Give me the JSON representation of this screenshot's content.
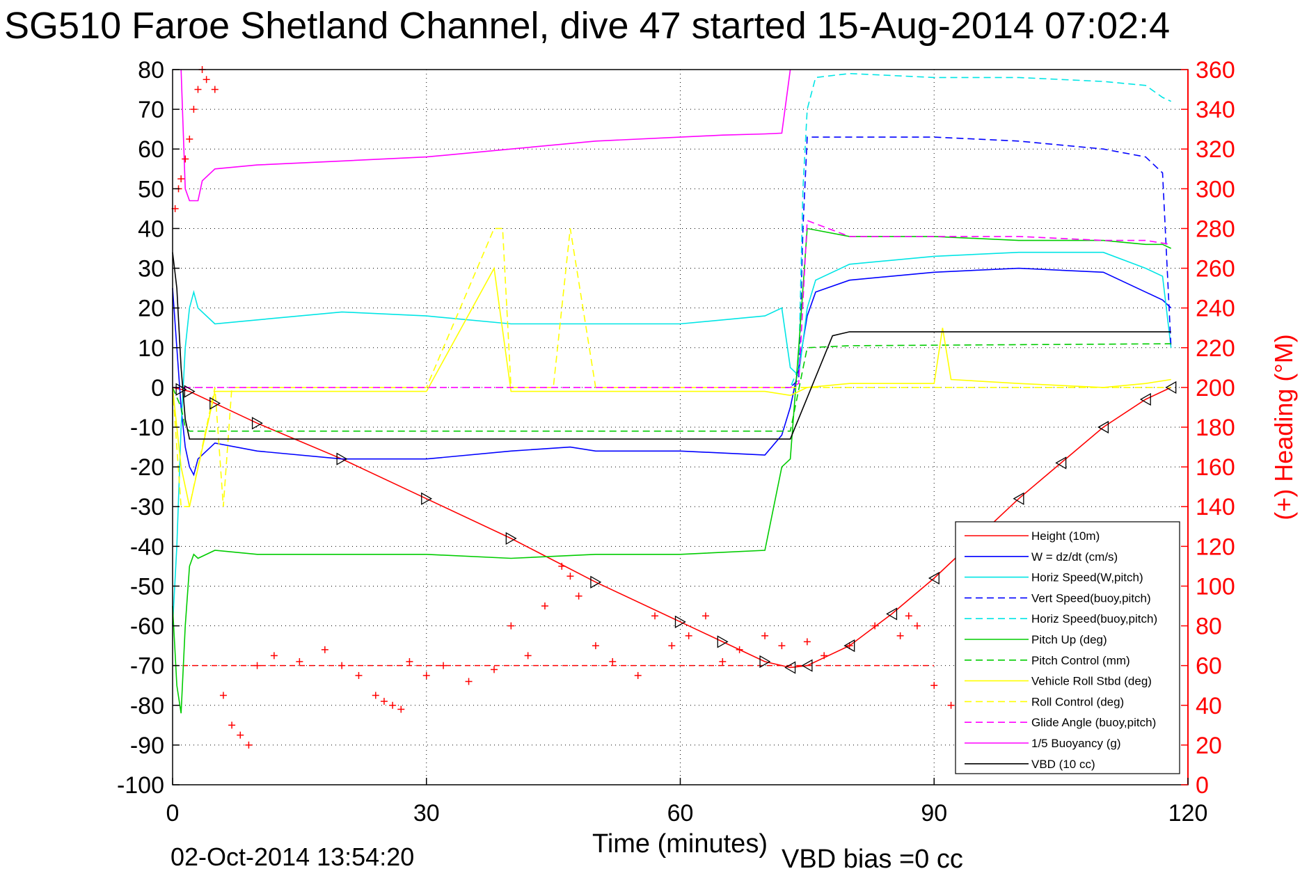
{
  "title": "SG510 Faroe Shetland Channel, dive 47 started 15-Aug-2014 07:02:4",
  "footer": {
    "timestamp": "02-Oct-2014 13:54:20",
    "vbd_bias": "VBD bias =0 cc"
  },
  "colors": {
    "axis_right": "#ff0000",
    "grid": "#000000",
    "height": "#ff0000",
    "w": "#0000ff",
    "horiz_w": "#00e5e5",
    "vert_buoy": "#0000ff",
    "horiz_buoy": "#00e5e5",
    "pitch": "#00cc00",
    "pitch_ctrl": "#00cc00",
    "roll": "#ffff00",
    "roll_ctrl": "#ffff00",
    "glide": "#ff00ff",
    "buoyancy": "#ff00ff",
    "vbd": "#000000",
    "heading": "#ff0000"
  },
  "chart_data": {
    "type": "line",
    "title": "SG510 Faroe Shetland Channel, dive 47 started 15-Aug-2014 07:02:4",
    "xlabel": "Time (minutes)",
    "ylabel": "",
    "y2label": "(+) Heading (°M)",
    "xlim": [
      0,
      120
    ],
    "ylim": [
      -100,
      80
    ],
    "y2lim": [
      0,
      360
    ],
    "xticks": [
      "0",
      "30",
      "60",
      "90",
      "120"
    ],
    "yticks": [
      "80",
      "70",
      "60",
      "50",
      "40",
      "30",
      "20",
      "10",
      "0",
      "-10",
      "-20",
      "-30",
      "-40",
      "-50",
      "-60",
      "-70",
      "-80",
      "-90",
      "-100"
    ],
    "y2ticks": [
      "360",
      "340",
      "320",
      "300",
      "280",
      "260",
      "240",
      "220",
      "200",
      "180",
      "160",
      "140",
      "120",
      "100",
      "80",
      "60",
      "40",
      "20",
      "0"
    ],
    "grid": true,
    "legend_position": "bottom-right",
    "series": [
      {
        "name": "Height (10m)",
        "style": "solid",
        "color": "#ff0000",
        "x": [
          0,
          1,
          2,
          5,
          10,
          20,
          30,
          40,
          50,
          60,
          65,
          70,
          73,
          75,
          80,
          85,
          90,
          95,
          100,
          105,
          110,
          115,
          118
        ],
        "y": [
          0,
          -0.5,
          -1,
          -4,
          -9,
          -18,
          -28,
          -38,
          -49,
          -59,
          -64,
          -69,
          -70.5,
          -70,
          -65,
          -57,
          -48,
          -38,
          -28,
          -19,
          -10,
          -3,
          0
        ]
      },
      {
        "name": "W = dz/dt (cm/s)",
        "style": "solid",
        "color": "#0000ff",
        "x": [
          0,
          0.5,
          1,
          1.5,
          2,
          2.5,
          3,
          5,
          10,
          20,
          30,
          40,
          47,
          50,
          60,
          70,
          72,
          73,
          74,
          75,
          76,
          80,
          90,
          100,
          110,
          115,
          117,
          118
        ],
        "y": [
          25,
          10,
          -5,
          -15,
          -20,
          -22,
          -18,
          -14,
          -16,
          -18,
          -18,
          -16,
          -15,
          -16,
          -16,
          -17,
          -12,
          -5,
          5,
          18,
          24,
          27,
          29,
          30,
          29,
          24,
          22,
          20
        ]
      },
      {
        "name": "Horiz Speed(W,pitch)",
        "style": "solid",
        "color": "#00e5e5",
        "x": [
          0,
          0.5,
          1,
          1.5,
          2,
          2.5,
          3,
          5,
          10,
          20,
          30,
          40,
          47,
          50,
          60,
          70,
          72,
          73,
          74,
          75,
          76,
          80,
          90,
          100,
          110,
          115,
          117,
          118
        ],
        "y": [
          -60,
          -40,
          -10,
          10,
          20,
          24,
          20,
          16,
          17,
          19,
          18,
          16,
          16,
          16,
          16,
          18,
          20,
          5,
          3,
          20,
          27,
          31,
          33,
          34,
          34,
          30,
          28,
          10
        ]
      },
      {
        "name": "Vert Speed(buoy,pitch)",
        "style": "dashed",
        "color": "#0000ff",
        "x": [
          72,
          73,
          74,
          74.5,
          75,
          80,
          90,
          100,
          110,
          115,
          117,
          118
        ],
        "y": [
          0,
          0,
          2,
          40,
          63,
          63,
          63,
          62,
          60,
          58,
          54,
          10
        ]
      },
      {
        "name": "Horiz Speed(buoy,pitch)",
        "style": "dashed",
        "color": "#00e5e5",
        "x": [
          72,
          73,
          74,
          74.5,
          75,
          76,
          80,
          90,
          100,
          110,
          115,
          117,
          118
        ],
        "y": [
          0,
          0,
          5,
          50,
          70,
          78,
          79,
          78,
          78,
          77,
          76,
          73,
          72
        ]
      },
      {
        "name": "Pitch Up (deg)",
        "style": "solid",
        "color": "#00cc00",
        "x": [
          0,
          0.5,
          1,
          1.5,
          2,
          2.5,
          3,
          5,
          10,
          20,
          30,
          40,
          50,
          60,
          70,
          72,
          73,
          74,
          75,
          80,
          90,
          100,
          110,
          115,
          117,
          118
        ],
        "y": [
          -55,
          -75,
          -82,
          -60,
          -45,
          -42,
          -43,
          -41,
          -42,
          -42,
          -42,
          -43,
          -42,
          -42,
          -41,
          -20,
          -18,
          10,
          40,
          38,
          38,
          37,
          37,
          36,
          36,
          35
        ]
      },
      {
        "name": "Pitch Control (mm)",
        "style": "dashed",
        "color": "#00cc00",
        "x": [
          0,
          1,
          1.5,
          2,
          3,
          72,
          73,
          75,
          80,
          118
        ],
        "y": [
          0,
          -5,
          -10,
          -11,
          -11,
          -11,
          -11,
          10,
          10.5,
          11
        ]
      },
      {
        "name": "Vehicle Roll Stbd (deg)",
        "style": "solid",
        "color": "#ffff00",
        "x": [
          0,
          1,
          2,
          5,
          10,
          20,
          30,
          38,
          40,
          45,
          50,
          60,
          70,
          73,
          75,
          80,
          90,
          91,
          92,
          100,
          110,
          115,
          118
        ],
        "y": [
          0,
          -20,
          -30,
          -1,
          -1,
          -1,
          -1,
          30,
          -1,
          -1,
          -1,
          -1,
          -1,
          -2,
          0,
          1,
          1,
          15,
          2,
          1,
          0,
          1,
          2
        ]
      },
      {
        "name": "Roll Control (deg)",
        "style": "dashed",
        "color": "#ffff00",
        "x": [
          0,
          1,
          2,
          5,
          6,
          7,
          10,
          20,
          30,
          38,
          39,
          40,
          45,
          47,
          50,
          60,
          70,
          73,
          75,
          80,
          90,
          100,
          110,
          115,
          118
        ],
        "y": [
          0,
          -30,
          -30,
          0,
          -30,
          0,
          0,
          0,
          0,
          40,
          40,
          0,
          0,
          40,
          0,
          0,
          0,
          0,
          0,
          0,
          0,
          0,
          0,
          0,
          0
        ]
      },
      {
        "name": "Glide Angle (buoy,pitch)",
        "style": "dashed",
        "color": "#ff00ff",
        "x": [
          0,
          72,
          73,
          74,
          75,
          80,
          90,
          100,
          110,
          115,
          118
        ],
        "y": [
          0,
          0,
          0,
          1,
          42,
          38,
          38,
          38,
          37,
          37,
          36
        ]
      },
      {
        "name": "1/5 Buoyancy (g)",
        "style": "solid",
        "color": "#ff00ff",
        "x": [
          1,
          1.5,
          2,
          3,
          3.5,
          5,
          10,
          20,
          30,
          40,
          50,
          60,
          65,
          70,
          72,
          73
        ],
        "y": [
          80,
          50,
          47,
          47,
          52,
          55,
          56,
          57,
          58,
          60,
          62,
          63,
          63.5,
          63.8,
          64,
          80
        ]
      },
      {
        "name": "VBD (10 cc)",
        "style": "solid",
        "color": "#000000",
        "x": [
          0,
          0.5,
          1,
          1.5,
          2,
          72,
          73,
          78,
          80,
          118
        ],
        "y": [
          34,
          25,
          5,
          -8,
          -13,
          -13,
          -13,
          13,
          14,
          14
        ]
      }
    ],
    "heading": {
      "name": "Heading",
      "axis": "right",
      "marker": "+",
      "color": "#ff0000",
      "x": [
        0.3,
        0.7,
        1,
        1.5,
        2,
        2.5,
        3,
        3.5,
        4,
        5,
        6,
        7,
        8,
        9,
        10,
        12,
        15,
        18,
        20,
        22,
        24,
        25,
        26,
        27,
        28,
        30,
        32,
        35,
        38,
        40,
        42,
        44,
        46,
        47,
        48,
        50,
        52,
        55,
        57,
        59,
        61,
        63,
        65,
        67,
        70,
        72,
        75,
        77,
        80,
        83,
        86,
        87,
        88,
        90,
        92,
        93
      ],
      "y": [
        290,
        300,
        305,
        315,
        325,
        340,
        350,
        360,
        355,
        350,
        45,
        30,
        25,
        20,
        60,
        65,
        62,
        68,
        60,
        55,
        45,
        42,
        40,
        38,
        62,
        55,
        60,
        52,
        58,
        80,
        65,
        90,
        110,
        105,
        95,
        70,
        62,
        55,
        85,
        70,
        75,
        85,
        62,
        68,
        75,
        70,
        72,
        65,
        70,
        80,
        75,
        85,
        80,
        50,
        40,
        70
      ]
    },
    "annotations": [
      {
        "type": "hline",
        "axis": "right",
        "value": 60,
        "style": "dashed",
        "color": "#ff0000"
      }
    ]
  },
  "legend": {
    "items": [
      {
        "label": "Height (10m)",
        "color": "#ff0000",
        "style": "solid"
      },
      {
        "label": "W = dz/dt (cm/s)",
        "color": "#0000ff",
        "style": "solid"
      },
      {
        "label": "Horiz Speed(W,pitch)",
        "color": "#00e5e5",
        "style": "solid"
      },
      {
        "label": "Vert Speed(buoy,pitch)",
        "color": "#0000ff",
        "style": "dashed"
      },
      {
        "label": "Horiz Speed(buoy,pitch)",
        "color": "#00e5e5",
        "style": "dashed"
      },
      {
        "label": "Pitch Up (deg)",
        "color": "#00cc00",
        "style": "solid"
      },
      {
        "label": "Pitch Control (mm)",
        "color": "#00cc00",
        "style": "dashed"
      },
      {
        "label": "Vehicle Roll Stbd (deg)",
        "color": "#ffff00",
        "style": "solid"
      },
      {
        "label": "Roll Control (deg)",
        "color": "#ffff00",
        "style": "dashed"
      },
      {
        "label": "Glide Angle (buoy,pitch)",
        "color": "#ff00ff",
        "style": "dashed"
      },
      {
        "label": "1/5 Buoyancy (g)",
        "color": "#ff00ff",
        "style": "solid"
      },
      {
        "label": "VBD (10 cc)",
        "color": "#000000",
        "style": "solid"
      }
    ]
  }
}
